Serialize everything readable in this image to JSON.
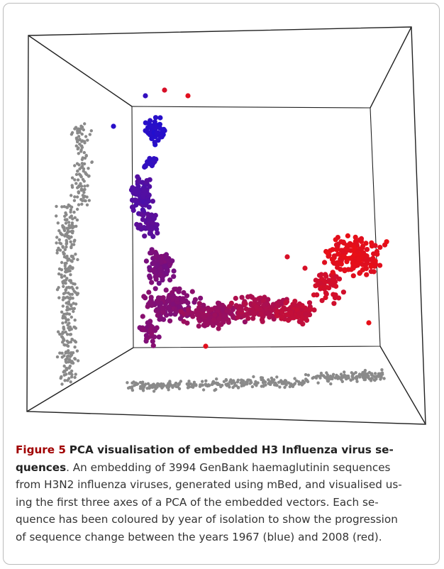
{
  "caption": {
    "label": "Figure 5",
    "title_lines": [
      "PCA visualisation of embedded H3 Influenza virus se-",
      "quences"
    ],
    "body_lines": [
      ". An embedding of 3994 GenBank haemaglutinin sequences",
      "from H3N2 influenza viruses, generated using mBed, and visualised us-",
      "ing the first three axes of a PCA of the embedded vectors. Each se-",
      "quence has been coloured by year of isolation to show the progression",
      "of sequence change between the years 1967 (blue) and 2008 (red)."
    ]
  }
}
